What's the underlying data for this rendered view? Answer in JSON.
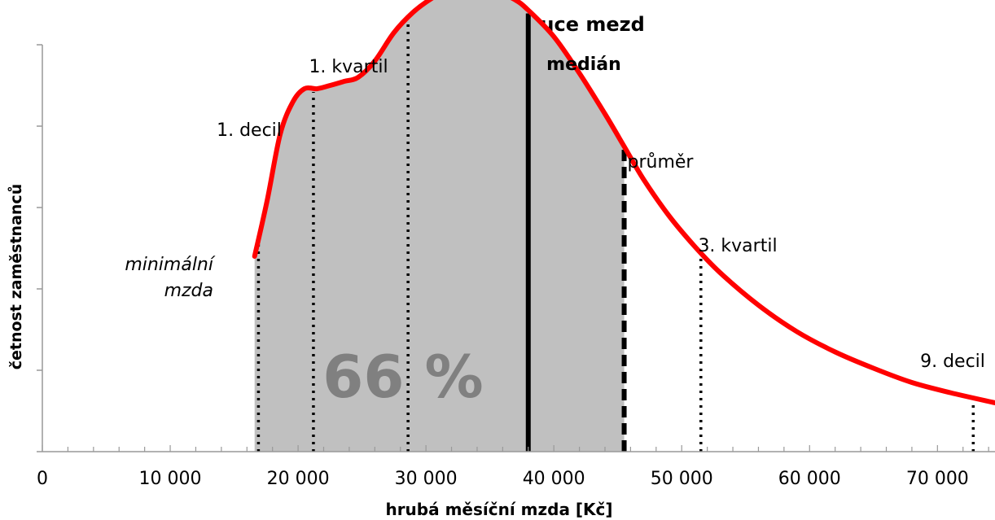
{
  "chart_data": {
    "type": "area",
    "title": "Distribuce mezd",
    "xlabel": "hrubá měsíční mzda [Kč]",
    "ylabel": "četnost zaměstnanců",
    "xlim": [
      0,
      74500
    ],
    "ylim": [
      0,
      100
    ],
    "x_ticks": [
      {
        "value": 0,
        "label": "0"
      },
      {
        "value": 10000,
        "label": "10 000"
      },
      {
        "value": 20000,
        "label": "20 000"
      },
      {
        "value": 30000,
        "label": "30 000"
      },
      {
        "value": 40000,
        "label": "40 000"
      },
      {
        "value": 50000,
        "label": "50 000"
      },
      {
        "value": 60000,
        "label": "60 000"
      },
      {
        "value": 70000,
        "label": "70 000"
      }
    ],
    "y_ticks": [
      0,
      20,
      40,
      60,
      80,
      100
    ],
    "curve_color": "#ff0000",
    "fill_color": "#c0c0c0",
    "curve": [
      {
        "x": 16600,
        "y": 48
      },
      {
        "x": 17600,
        "y": 62
      },
      {
        "x": 18600,
        "y": 78
      },
      {
        "x": 19600,
        "y": 86
      },
      {
        "x": 20500,
        "y": 89.2
      },
      {
        "x": 21500,
        "y": 89.2
      },
      {
        "x": 22500,
        "y": 90
      },
      {
        "x": 23600,
        "y": 91
      },
      {
        "x": 24700,
        "y": 92
      },
      {
        "x": 26000,
        "y": 96
      },
      {
        "x": 27500,
        "y": 103
      },
      {
        "x": 29000,
        "y": 108
      },
      {
        "x": 30500,
        "y": 111.5
      },
      {
        "x": 32000,
        "y": 114
      },
      {
        "x": 33000,
        "y": 114.8
      },
      {
        "x": 34000,
        "y": 114.6
      },
      {
        "x": 35600,
        "y": 113
      },
      {
        "x": 37000,
        "y": 111
      },
      {
        "x": 38000,
        "y": 108.5
      },
      {
        "x": 40000,
        "y": 102
      },
      {
        "x": 42000,
        "y": 93
      },
      {
        "x": 44000,
        "y": 83
      },
      {
        "x": 45500,
        "y": 75
      },
      {
        "x": 47000,
        "y": 67
      },
      {
        "x": 49000,
        "y": 58
      },
      {
        "x": 51000,
        "y": 50.5
      },
      {
        "x": 53000,
        "y": 44
      },
      {
        "x": 56000,
        "y": 36
      },
      {
        "x": 59000,
        "y": 29.5
      },
      {
        "x": 62000,
        "y": 24.5
      },
      {
        "x": 65000,
        "y": 20.5
      },
      {
        "x": 68000,
        "y": 17
      },
      {
        "x": 71000,
        "y": 14.5
      },
      {
        "x": 74500,
        "y": 12
      }
    ],
    "shaded_range": [
      16600,
      45500
    ],
    "shaded_share_label": "66 %",
    "markers": [
      {
        "id": "minimum-wage",
        "label_lines": [
          "minimální",
          "mzda"
        ],
        "x": 16900,
        "style": "dotted"
      },
      {
        "id": "decile-1",
        "label_lines": [
          "1. decil"
        ],
        "x": 21200,
        "style": "dotted"
      },
      {
        "id": "quartile-1",
        "label_lines": [
          "1. kvartil"
        ],
        "x": 28600,
        "style": "dotted"
      },
      {
        "id": "median",
        "label_lines": [
          "medián"
        ],
        "x": 38000,
        "style": "solid"
      },
      {
        "id": "mean",
        "label_lines": [
          "průměr"
        ],
        "x": 45500,
        "style": "dashed"
      },
      {
        "id": "quartile-3",
        "label_lines": [
          "3. kvartil"
        ],
        "x": 51500,
        "style": "dotted"
      },
      {
        "id": "decile-9",
        "label_lines": [
          "9. decil"
        ],
        "x": 72800,
        "style": "dotted"
      }
    ],
    "grid": false,
    "legend": "none"
  }
}
